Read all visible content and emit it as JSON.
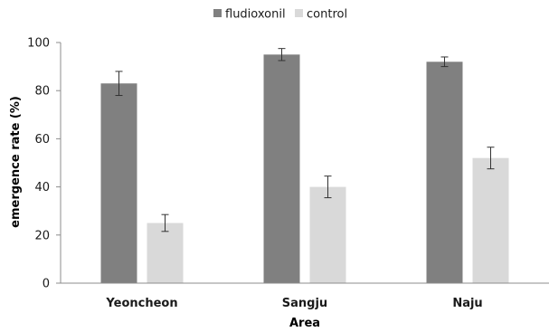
{
  "chart_data": {
    "type": "bar",
    "title": "",
    "xlabel": "Area",
    "ylabel": "emergence rate (%)",
    "ylim": [
      0,
      100
    ],
    "yticks": [
      0,
      20,
      40,
      60,
      80,
      100
    ],
    "grid": false,
    "legend_position": "top-center",
    "categories": [
      "Yeoncheon",
      "Sangju",
      "Naju"
    ],
    "series": [
      {
        "name": "fludioxonil",
        "color": "#808080",
        "values": [
          83,
          95,
          92
        ],
        "errors": [
          5,
          2.5,
          2
        ]
      },
      {
        "name": "control",
        "color": "#d9d9d9",
        "values": [
          25,
          40,
          52
        ],
        "errors": [
          3.5,
          4.5,
          4.5
        ]
      }
    ]
  }
}
